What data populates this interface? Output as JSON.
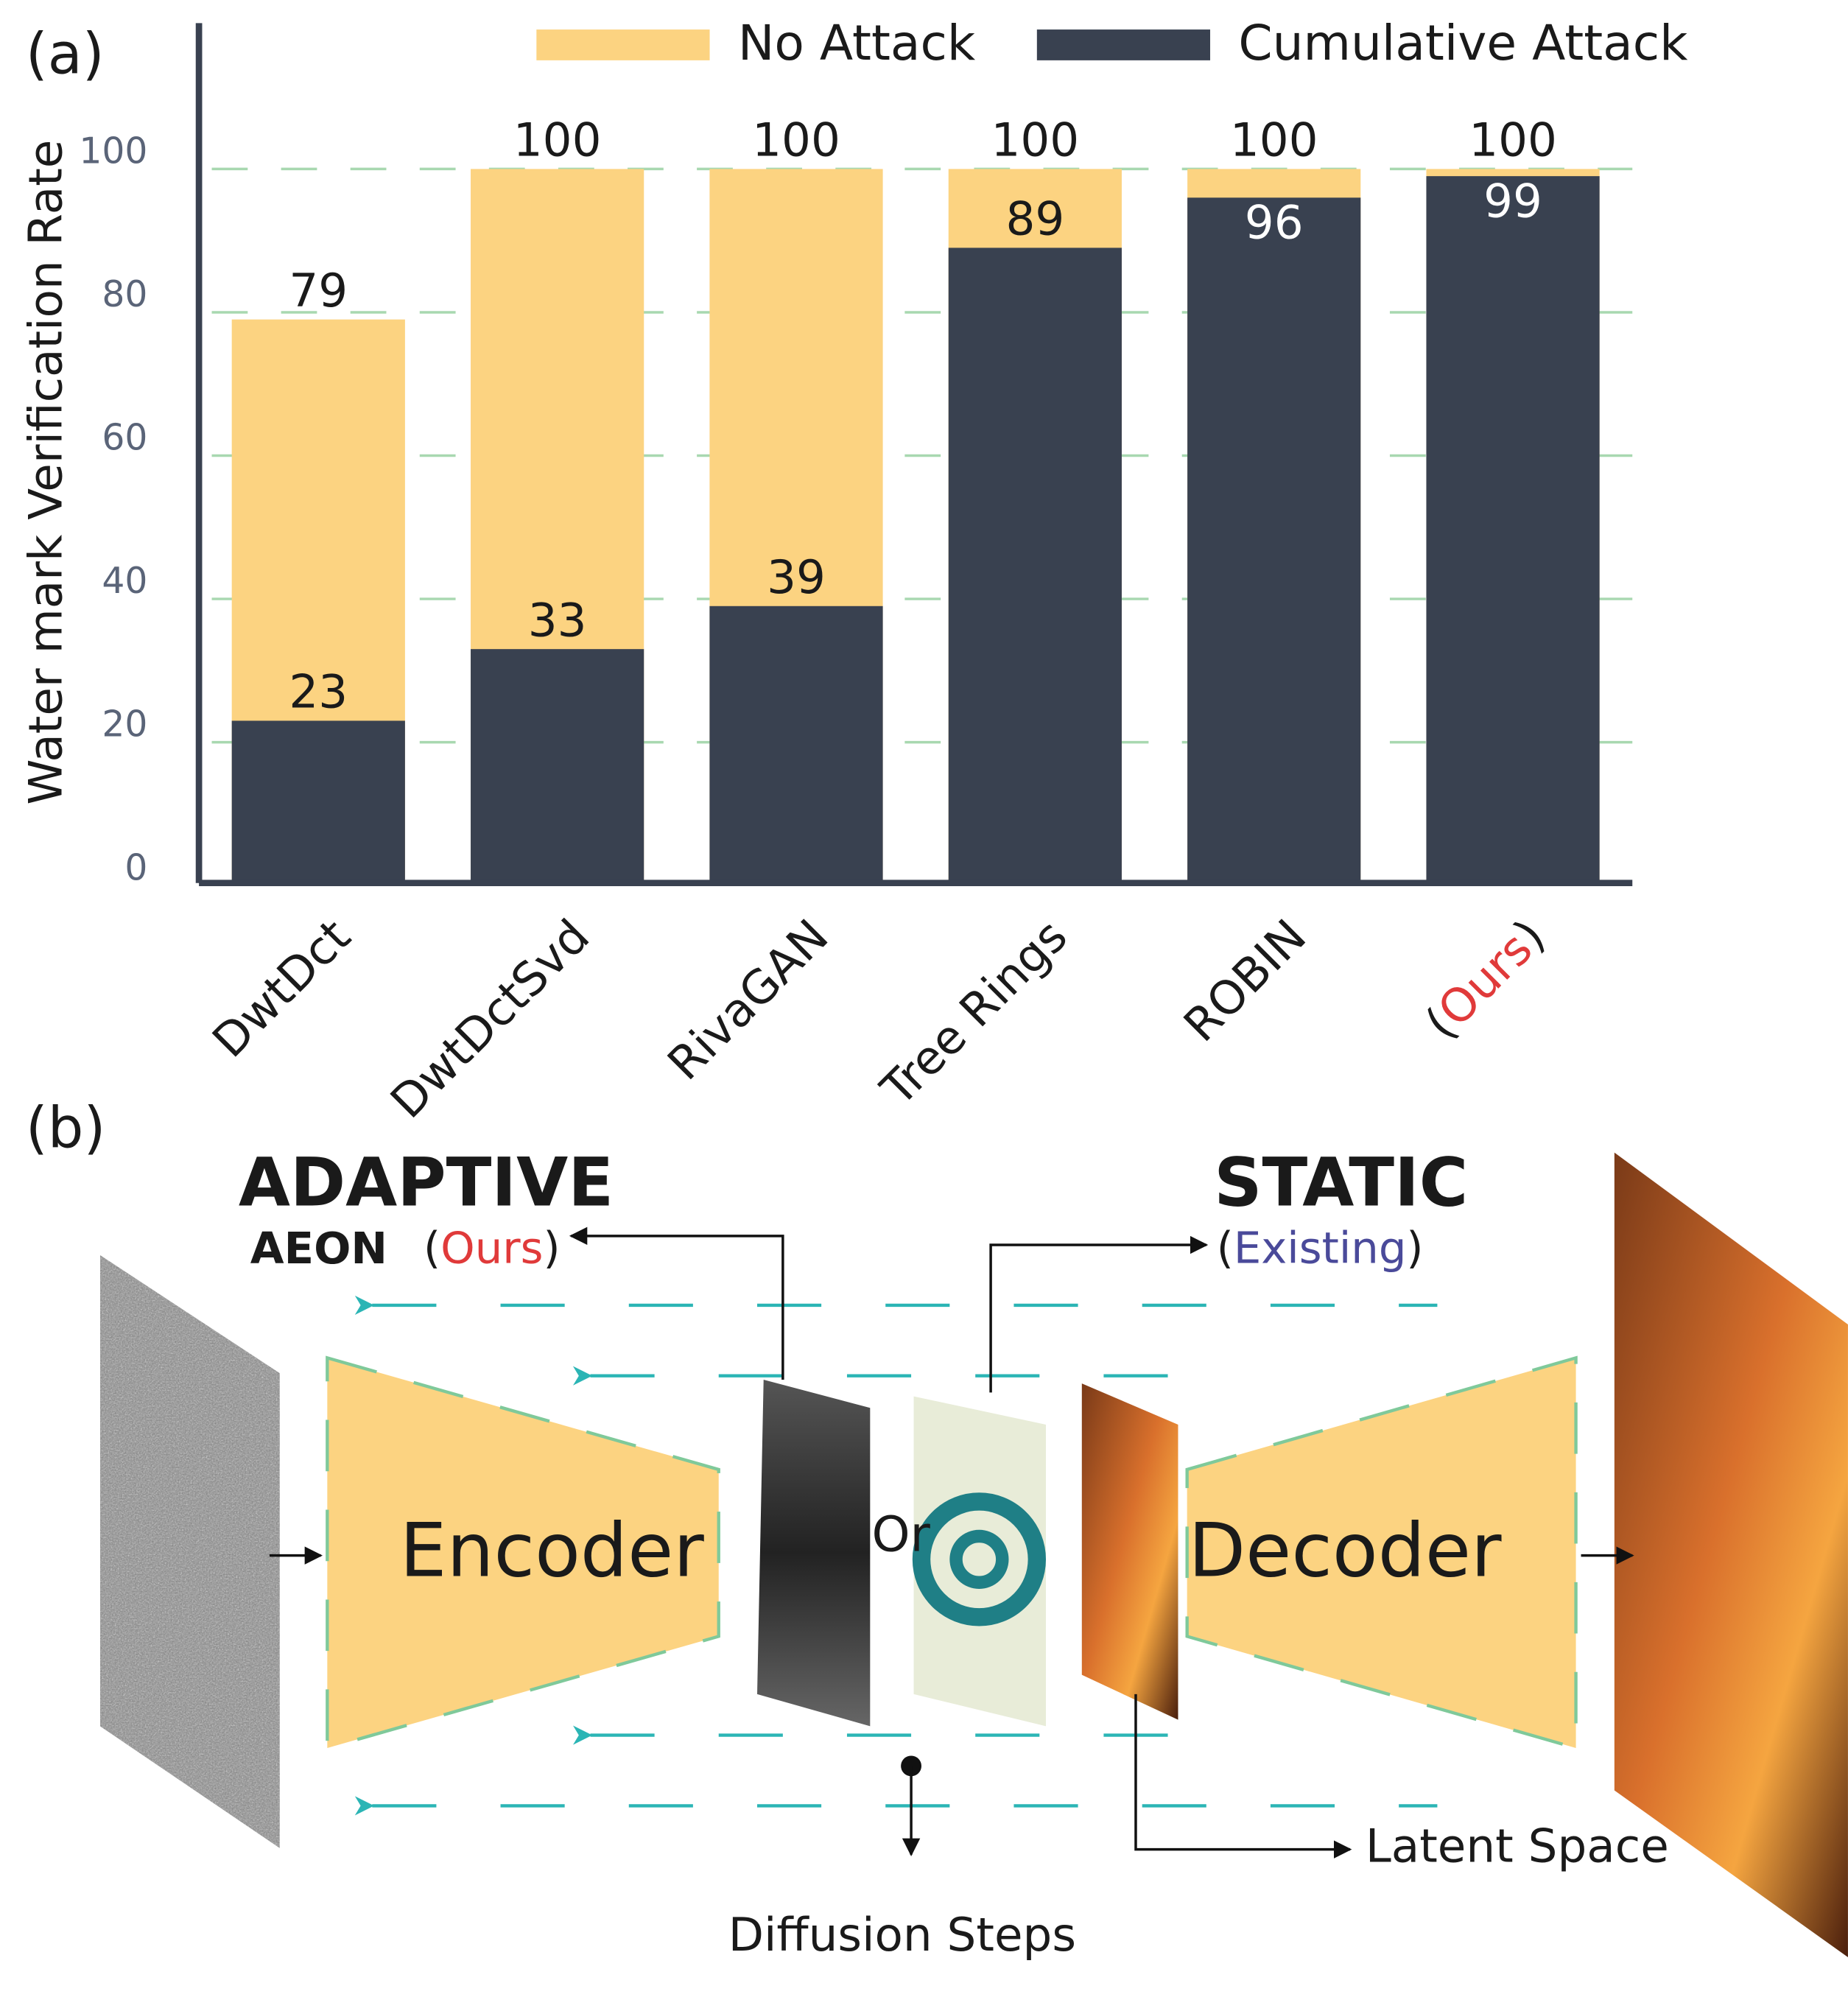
{
  "chart_data": {
    "type": "bar",
    "panel": "(a)",
    "y_label": "Water mark Verification Rate",
    "categories": [
      "DwtDct",
      "DwtDctSvd",
      "RivaGAN",
      "Tree Rings",
      "ROBIN",
      "(Ours)"
    ],
    "series": [
      {
        "name": "No Attack",
        "color": "#fcd381",
        "values": [
          79,
          100,
          100,
          100,
          100,
          100
        ]
      },
      {
        "name": "Cumulative Attack",
        "color": "#394150",
        "values": [
          23,
          33,
          39,
          89,
          96,
          99
        ]
      }
    ],
    "ylim": [
      0,
      120
    ],
    "yticks": [
      0,
      20,
      40,
      60,
      80,
      100
    ],
    "grid": true,
    "legend": "top-right"
  },
  "diagram": {
    "panel": "(b)",
    "adaptive": "ADAPTIVE",
    "aeon": "AEON",
    "ours": "(Ours)",
    "static": "STATIC",
    "existing": "(Existing)",
    "encoder": "Encoder",
    "or": "Or",
    "decoder": "Decoder",
    "latent": "Latent Space",
    "steps": "Diffusion Steps"
  }
}
